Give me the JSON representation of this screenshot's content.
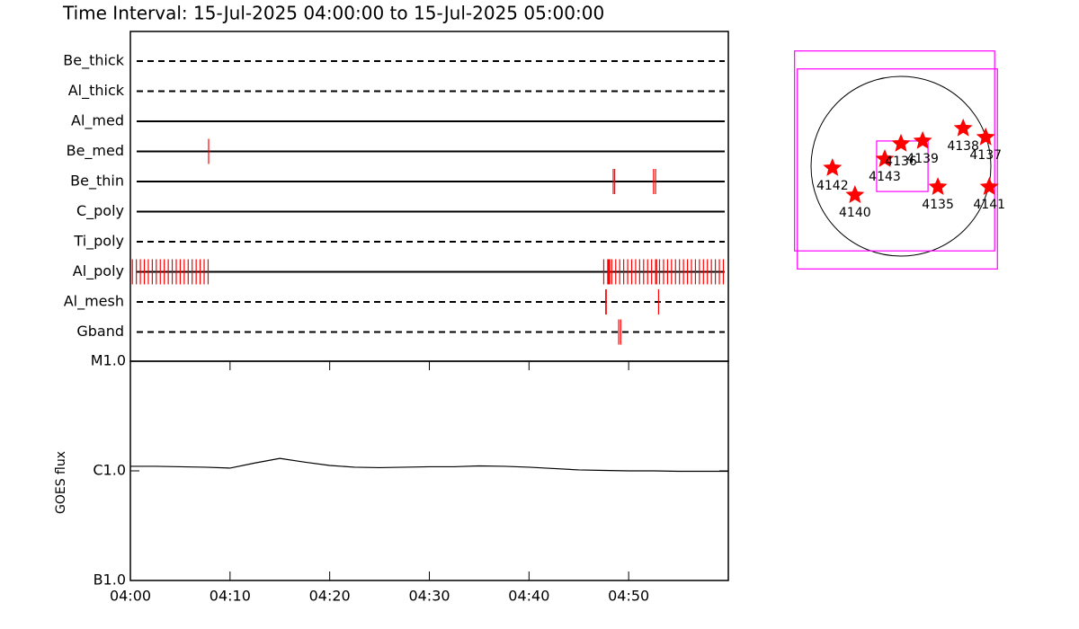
{
  "chart_data": [
    {
      "type": "timeline",
      "title": "Time Interval: 15-Jul-2025 04:00:00 to 15-Jul-2025 05:00:00",
      "categories": [
        "Be_thick",
        "Al_thick",
        "Al_med",
        "Be_med",
        "Be_thin",
        "C_poly",
        "Ti_poly",
        "Al_poly",
        "Al_mesh",
        "Gband"
      ],
      "line_styles": [
        "dashed",
        "dashed",
        "solid",
        "solid",
        "solid",
        "solid",
        "dashed",
        "solid",
        "dashed",
        "dashed"
      ],
      "color": "#ff0000",
      "xlim": [
        0,
        60
      ],
      "events": [
        [],
        [],
        [],
        [
          7.85
        ],
        [
          48.45,
          48.6,
          52.5,
          52.7
        ],
        [],
        [],
        [
          0.2,
          0.6,
          1.0,
          1.4,
          1.8,
          2.2,
          2.6,
          3.0,
          3.4,
          3.8,
          4.2,
          4.6,
          5.0,
          5.4,
          5.8,
          6.2,
          6.6,
          7.0,
          7.4,
          7.8,
          47.5,
          47.9,
          48.0,
          48.1,
          48.3,
          48.7,
          49.1,
          49.5,
          49.9,
          50.3,
          50.7,
          51.1,
          51.5,
          51.9,
          52.3,
          52.7,
          52.8,
          53.1,
          53.5,
          53.9,
          54.3,
          54.7,
          55.1,
          55.5,
          55.9,
          56.3,
          56.7,
          57.1,
          57.5,
          57.9,
          58.3,
          58.7,
          59.1,
          59.5
        ],
        [
          47.7,
          47.75,
          53.0
        ],
        [
          49.0,
          49.2
        ]
      ]
    },
    {
      "type": "line",
      "ylabel": "GOES flux",
      "color": "#000000",
      "log_scale": true,
      "x": [
        0,
        2.5,
        5,
        7.5,
        10,
        12.5,
        15,
        17.5,
        20,
        22.5,
        25,
        27.5,
        30,
        32.5,
        35,
        37.5,
        40,
        42.5,
        45,
        47.5,
        50,
        52.5,
        55,
        57.5,
        60
      ],
      "values": [
        1.1e-06,
        1.1e-06,
        1.09e-06,
        1.08e-06,
        1.06e-06,
        1.18e-06,
        1.3e-06,
        1.2e-06,
        1.12e-06,
        1.08e-06,
        1.07e-06,
        1.08e-06,
        1.09e-06,
        1.09e-06,
        1.11e-06,
        1.1e-06,
        1.08e-06,
        1.05e-06,
        1.02e-06,
        1.01e-06,
        1e-06,
        1e-06,
        9.9e-07,
        9.9e-07,
        9.9e-07
      ],
      "xlim": [
        0,
        60
      ],
      "xticks": [
        {
          "value": 0,
          "label": "04:00"
        },
        {
          "value": 10,
          "label": "04:10"
        },
        {
          "value": 20,
          "label": "04:20"
        },
        {
          "value": 30,
          "label": "04:30"
        },
        {
          "value": 40,
          "label": "04:40"
        },
        {
          "value": 50,
          "label": "04:50"
        }
      ],
      "ylim": [
        1e-07,
        1e-05
      ],
      "yticks": [
        {
          "value": 1e-07,
          "label": "B1.0"
        },
        {
          "value": 1e-06,
          "label": "C1.0"
        },
        {
          "value": 1e-05,
          "label": "M1.0"
        }
      ]
    },
    {
      "type": "map",
      "color": "#ff0000",
      "box_color": "#ff00ff",
      "xlim": [
        -1140,
        1140
      ],
      "ylim": [
        -1140,
        1140
      ],
      "labels": [
        "4142",
        "4140",
        "4143",
        "4136",
        "4139",
        "4138",
        "4137",
        "4135",
        "4141"
      ],
      "x": [
        -724,
        -486,
        -171,
        0,
        229,
        657,
        895,
        390,
        933
      ],
      "y": [
        -19,
        -305,
        76,
        238,
        267,
        400,
        305,
        -219,
        -219
      ],
      "boxes": [
        [
          -1124,
          990,
          -895,
          1219
        ],
        [
          -1095,
          1019,
          -1086,
          1029
        ],
        [
          -257,
          286,
          -267,
          267
        ]
      ]
    }
  ]
}
